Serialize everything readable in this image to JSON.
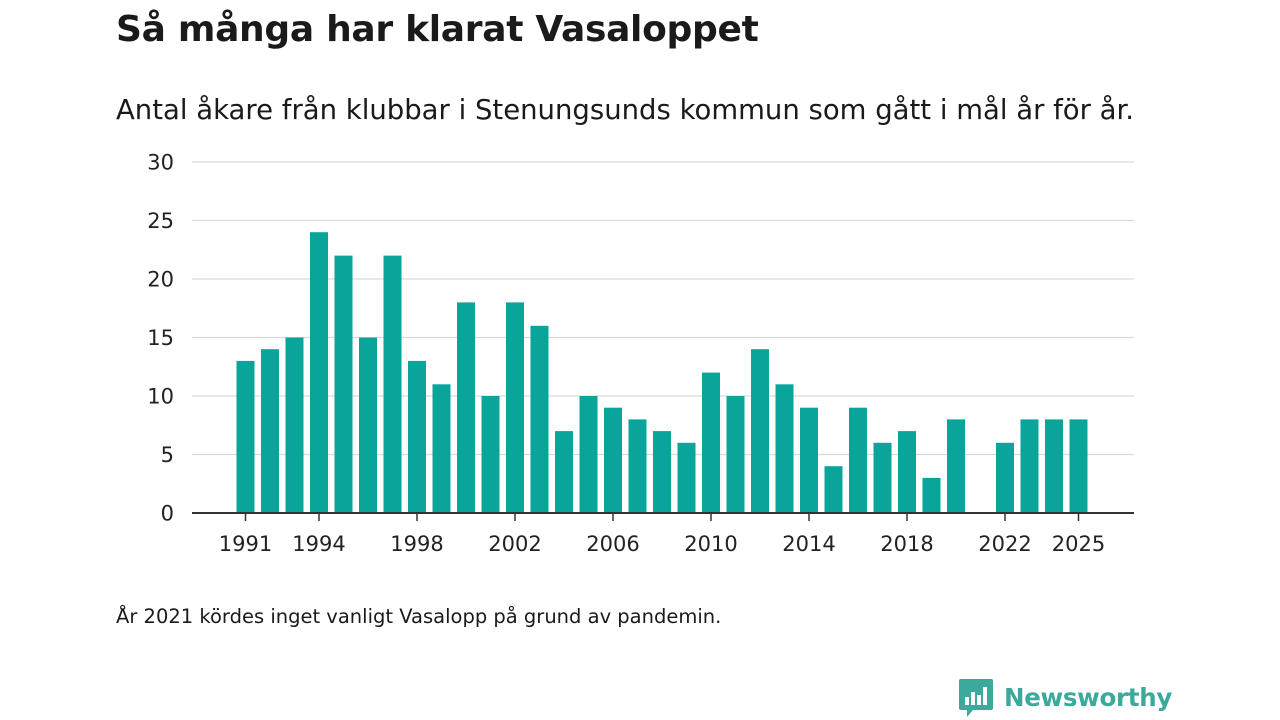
{
  "title": "Så många har klarat Vasaloppet",
  "subtitle": "Antal åkare från klubbar i Stenungsunds kommun som gått i mål år för år.",
  "footnote": "År 2021 kördes inget vanligt Vasalopp på grund av pandemin.",
  "brand": {
    "name": "Newsworthy",
    "icon": "newsworthy-logo-icon",
    "color": "#3ba99c"
  },
  "chart_data": {
    "type": "bar",
    "title": "Så många har klarat Vasaloppet",
    "xlabel": "",
    "ylabel": "",
    "bar_color": "#0aa59a",
    "grid": true,
    "ylim": [
      0,
      30
    ],
    "yticks": [
      "0",
      "5",
      "10",
      "15",
      "20",
      "25",
      "30"
    ],
    "xticks": [
      "1991",
      "1994",
      "1998",
      "2002",
      "2006",
      "2010",
      "2014",
      "2018",
      "2022",
      "2025"
    ],
    "x": [
      1991,
      1992,
      1993,
      1994,
      1995,
      1996,
      1997,
      1998,
      1999,
      2000,
      2001,
      2002,
      2003,
      2004,
      2005,
      2006,
      2007,
      2008,
      2009,
      2010,
      2011,
      2012,
      2013,
      2014,
      2015,
      2016,
      2017,
      2018,
      2019,
      2020,
      2021,
      2022,
      2023,
      2024,
      2025
    ],
    "values": [
      13,
      14,
      15,
      24,
      22,
      15,
      22,
      13,
      11,
      18,
      10,
      18,
      16,
      7,
      10,
      9,
      8,
      7,
      6,
      12,
      10,
      14,
      11,
      9,
      4,
      9,
      6,
      7,
      3,
      8,
      null,
      6,
      8,
      8,
      8
    ]
  }
}
